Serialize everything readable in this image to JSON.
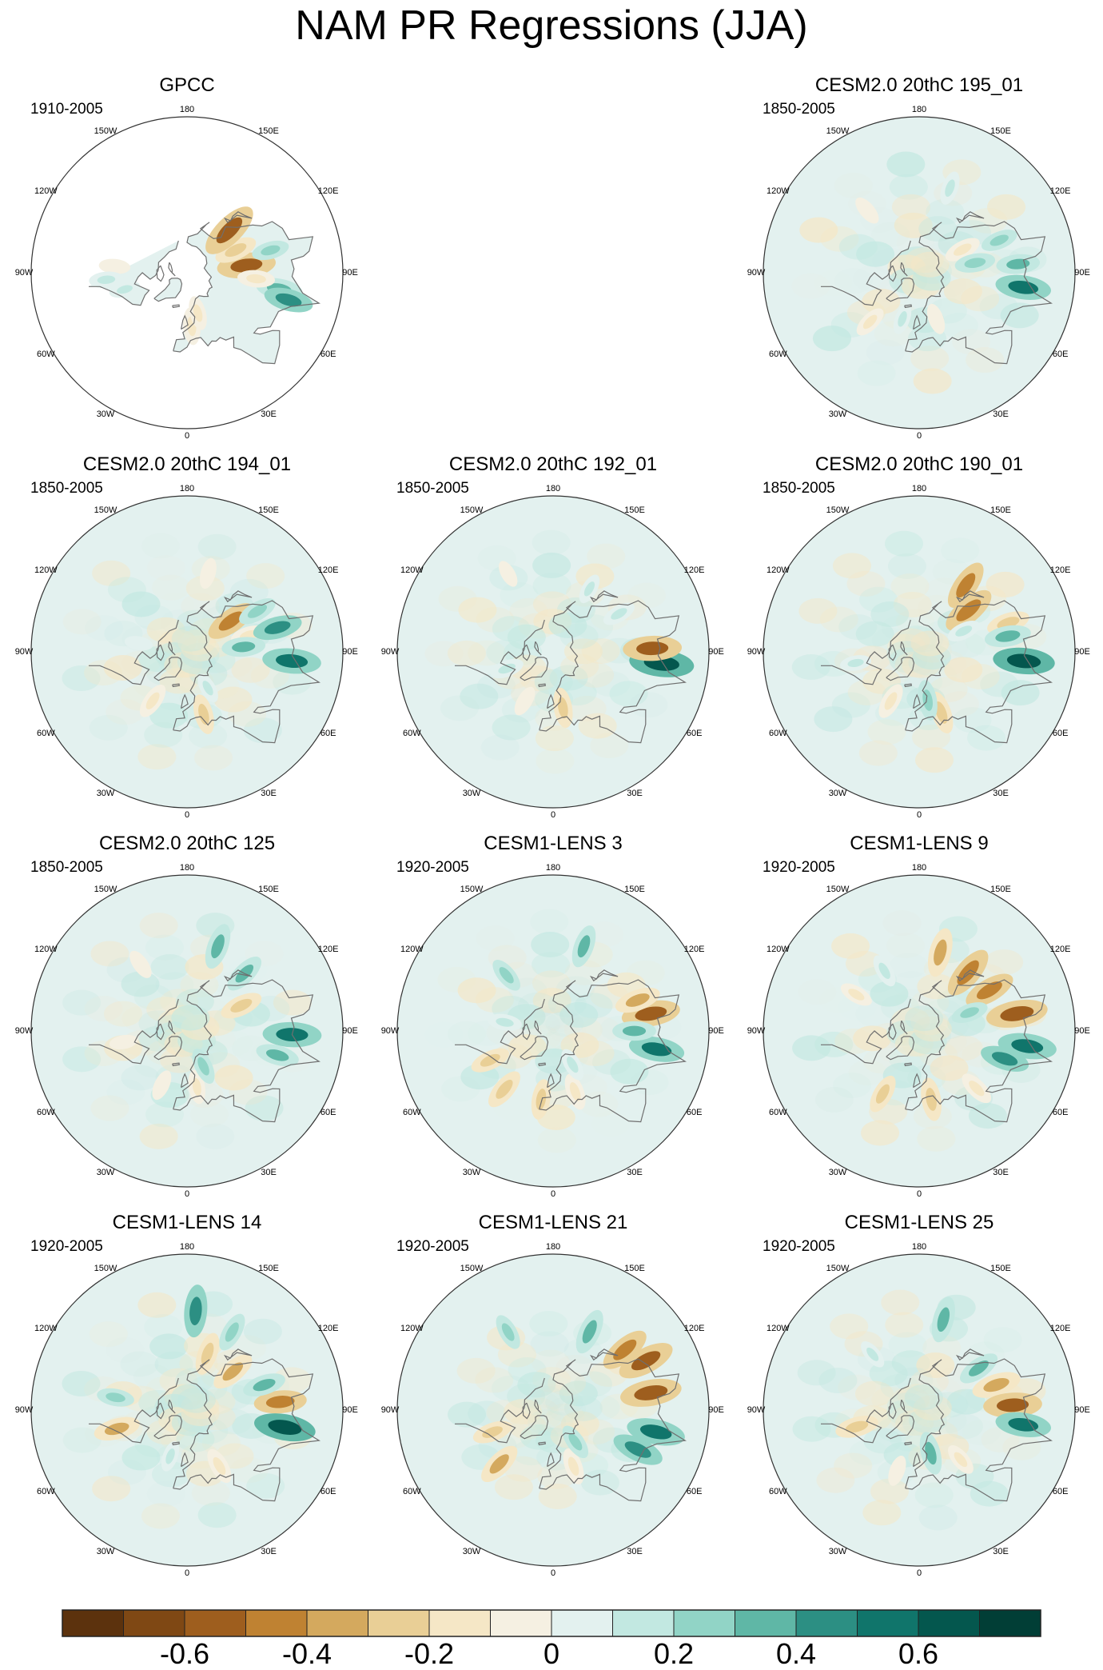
{
  "chart_data": {
    "type": "heatmap",
    "projection": "north-polar-stereographic",
    "title": "NAM PR Regressions (JJA)",
    "colorbar": {
      "levels": [
        -0.7,
        -0.6,
        -0.5,
        -0.4,
        -0.3,
        -0.2,
        -0.1,
        0,
        0.1,
        0.2,
        0.3,
        0.4,
        0.5,
        0.6,
        0.7
      ],
      "labels": [
        "-0.6",
        "-0.4",
        "-0.2",
        "0",
        "0.2",
        "0.4",
        "0.6"
      ],
      "label_values": [
        -0.6,
        -0.4,
        -0.2,
        0,
        0.2,
        0.4,
        0.6
      ],
      "colors": [
        "#5c320d",
        "#7f4814",
        "#9e5e1e",
        "#bf8232",
        "#d4a95e",
        "#e9cf96",
        "#f5e7c6",
        "#f5f0e2",
        "#e3f1ef",
        "#c2e8e1",
        "#91d4c6",
        "#5fb7a6",
        "#2c8f83",
        "#10756b",
        "#04574e",
        "#013e36"
      ]
    },
    "longitude_labels": [
      "180",
      "150E",
      "120E",
      "90E",
      "60E",
      "30E",
      "0",
      "30W",
      "60W",
      "90W",
      "120W",
      "150W"
    ],
    "panels": [
      {
        "id": "gpcc",
        "title": "GPCC",
        "period": "1910-2005",
        "observational_mask": true,
        "features": [
          {
            "lon": 97,
            "lat": 48,
            "value": -0.55
          },
          {
            "lon": 115,
            "lat": 52,
            "value": -0.3
          },
          {
            "lon": 135,
            "lat": 48,
            "value": -0.6
          },
          {
            "lon": 80,
            "lat": 28,
            "value": 0.35
          },
          {
            "lon": 75,
            "lat": 22,
            "value": 0.4
          },
          {
            "lon": 105,
            "lat": 32,
            "value": 0.2
          },
          {
            "lon": 5,
            "lat": 52,
            "value": -0.2
          },
          {
            "lon": 15,
            "lat": 60,
            "value": -0.15
          },
          {
            "lon": -95,
            "lat": 40,
            "value": -0.1
          },
          {
            "lon": -85,
            "lat": 35,
            "value": 0.15
          },
          {
            "lon": -75,
            "lat": 45,
            "value": 0.1
          },
          {
            "lon": 85,
            "lat": 42,
            "value": -0.2
          }
        ]
      },
      {
        "id": "cesm2-195",
        "title": "CESM2.0 20thC 195_01",
        "period": "1850-2005",
        "features": [
          {
            "lon": 82,
            "lat": 22,
            "value": 0.5
          },
          {
            "lon": 95,
            "lat": 25,
            "value": 0.3
          },
          {
            "lon": 112,
            "lat": 32,
            "value": 0.2
          },
          {
            "lon": 118,
            "lat": 55,
            "value": -0.2
          },
          {
            "lon": 100,
            "lat": 50,
            "value": 0.25
          },
          {
            "lon": 160,
            "lat": 30,
            "value": 0.15
          },
          {
            "lon": -140,
            "lat": 35,
            "value": -0.1
          },
          {
            "lon": -45,
            "lat": 42,
            "value": -0.15
          },
          {
            "lon": -20,
            "lat": 55,
            "value": 0.1
          },
          {
            "lon": 20,
            "lat": 55,
            "value": -0.1
          }
        ]
      },
      {
        "id": "cesm2-194",
        "title": "CESM2.0 20thC 194_01",
        "period": "1850-2005",
        "features": [
          {
            "lon": 125,
            "lat": 52,
            "value": -0.45
          },
          {
            "lon": 105,
            "lat": 45,
            "value": -0.2
          },
          {
            "lon": 85,
            "lat": 22,
            "value": 0.55
          },
          {
            "lon": 105,
            "lat": 28,
            "value": 0.4
          },
          {
            "lon": 120,
            "lat": 35,
            "value": 0.25
          },
          {
            "lon": 95,
            "lat": 50,
            "value": 0.3
          },
          {
            "lon": 15,
            "lat": 45,
            "value": -0.25
          },
          {
            "lon": -35,
            "lat": 48,
            "value": -0.2
          },
          {
            "lon": 30,
            "lat": 60,
            "value": 0.1
          },
          {
            "lon": -100,
            "lat": 55,
            "value": 0.05
          },
          {
            "lon": 165,
            "lat": 35,
            "value": -0.1
          }
        ]
      },
      {
        "id": "cesm2-192",
        "title": "CESM2.0 20thC 192_01",
        "period": "1850-2005",
        "features": [
          {
            "lon": 84,
            "lat": 20,
            "value": 0.65
          },
          {
            "lon": 92,
            "lat": 25,
            "value": -0.55
          },
          {
            "lon": 120,
            "lat": 38,
            "value": 0.15
          },
          {
            "lon": 10,
            "lat": 50,
            "value": -0.25
          },
          {
            "lon": -30,
            "lat": 50,
            "value": -0.1
          },
          {
            "lon": -70,
            "lat": 55,
            "value": 0.15
          },
          {
            "lon": 150,
            "lat": 40,
            "value": 0.1
          },
          {
            "lon": -150,
            "lat": 30,
            "value": -0.05
          }
        ]
      },
      {
        "id": "cesm2-190",
        "title": "CESM2.0 20thC 190_01",
        "period": "1850-2005",
        "features": [
          {
            "lon": 145,
            "lat": 35,
            "value": -0.45
          },
          {
            "lon": 130,
            "lat": 45,
            "value": -0.5
          },
          {
            "lon": 108,
            "lat": 28,
            "value": -0.3
          },
          {
            "lon": 85,
            "lat": 22,
            "value": 0.6
          },
          {
            "lon": 100,
            "lat": 30,
            "value": 0.35
          },
          {
            "lon": 20,
            "lat": 45,
            "value": -0.3
          },
          {
            "lon": 10,
            "lat": 55,
            "value": 0.25
          },
          {
            "lon": -30,
            "lat": 50,
            "value": -0.2
          },
          {
            "lon": -80,
            "lat": 45,
            "value": 0.1
          },
          {
            "lon": 115,
            "lat": 55,
            "value": 0.15
          }
        ]
      },
      {
        "id": "cesm2-125",
        "title": "CESM2.0 20thC 125",
        "period": "1850-2005",
        "features": [
          {
            "lon": 160,
            "lat": 30,
            "value": 0.35
          },
          {
            "lon": 135,
            "lat": 35,
            "value": 0.3
          },
          {
            "lon": 115,
            "lat": 48,
            "value": -0.3
          },
          {
            "lon": 88,
            "lat": 22,
            "value": 0.55
          },
          {
            "lon": 75,
            "lat": 28,
            "value": 0.3
          },
          {
            "lon": 10,
            "lat": 50,
            "value": -0.15
          },
          {
            "lon": -25,
            "lat": 48,
            "value": -0.1
          },
          {
            "lon": 25,
            "lat": 62,
            "value": 0.2
          },
          {
            "lon": -80,
            "lat": 45,
            "value": -0.05
          },
          {
            "lon": -145,
            "lat": 35,
            "value": -0.1
          }
        ]
      },
      {
        "id": "cesm1-3",
        "title": "CESM1-LENS 3",
        "period": "1920-2005",
        "features": [
          {
            "lon": 100,
            "lat": 25,
            "value": -0.55
          },
          {
            "lon": 110,
            "lat": 30,
            "value": -0.35
          },
          {
            "lon": 80,
            "lat": 22,
            "value": 0.5
          },
          {
            "lon": 90,
            "lat": 35,
            "value": 0.3
          },
          {
            "lon": 160,
            "lat": 30,
            "value": 0.3
          },
          {
            "lon": -140,
            "lat": 40,
            "value": 0.2
          },
          {
            "lon": -40,
            "lat": 38,
            "value": -0.3
          },
          {
            "lon": -10,
            "lat": 42,
            "value": -0.25
          },
          {
            "lon": 20,
            "lat": 45,
            "value": -0.2
          },
          {
            "lon": -65,
            "lat": 42,
            "value": -0.25
          },
          {
            "lon": 30,
            "lat": 62,
            "value": 0.15
          },
          {
            "lon": -100,
            "lat": 55,
            "value": 0.15
          }
        ]
      },
      {
        "id": "cesm1-9",
        "title": "CESM1-LENS 9",
        "period": "1920-2005",
        "features": [
          {
            "lon": 165,
            "lat": 35,
            "value": -0.4
          },
          {
            "lon": 140,
            "lat": 38,
            "value": -0.5
          },
          {
            "lon": 120,
            "lat": 35,
            "value": -0.45
          },
          {
            "lon": 100,
            "lat": 25,
            "value": -0.6
          },
          {
            "lon": 82,
            "lat": 20,
            "value": 0.55
          },
          {
            "lon": 72,
            "lat": 30,
            "value": 0.4
          },
          {
            "lon": 110,
            "lat": 52,
            "value": 0.2
          },
          {
            "lon": -30,
            "lat": 40,
            "value": -0.25
          },
          {
            "lon": 10,
            "lat": 42,
            "value": -0.3
          },
          {
            "lon": 45,
            "lat": 35,
            "value": -0.2
          },
          {
            "lon": -150,
            "lat": 42,
            "value": 0.15
          },
          {
            "lon": -120,
            "lat": 40,
            "value": -0.15
          }
        ]
      },
      {
        "id": "cesm1-14",
        "title": "CESM1-LENS 14",
        "period": "1920-2005",
        "features": [
          {
            "lon": 175,
            "lat": 25,
            "value": 0.45
          },
          {
            "lon": 150,
            "lat": 30,
            "value": 0.25
          },
          {
            "lon": 130,
            "lat": 48,
            "value": -0.35
          },
          {
            "lon": 160,
            "lat": 48,
            "value": -0.3
          },
          {
            "lon": 95,
            "lat": 28,
            "value": -0.45
          },
          {
            "lon": 80,
            "lat": 25,
            "value": 0.6
          },
          {
            "lon": 108,
            "lat": 35,
            "value": 0.3
          },
          {
            "lon": -100,
            "lat": 40,
            "value": 0.2
          },
          {
            "lon": -75,
            "lat": 40,
            "value": -0.35
          },
          {
            "lon": 30,
            "lat": 45,
            "value": -0.2
          },
          {
            "lon": -20,
            "lat": 55,
            "value": 0.1
          }
        ]
      },
      {
        "id": "cesm1-21",
        "title": "CESM1-LENS 21",
        "period": "1920-2005",
        "features": [
          {
            "lon": 118,
            "lat": 22,
            "value": -0.55
          },
          {
            "lon": 130,
            "lat": 28,
            "value": -0.45
          },
          {
            "lon": 100,
            "lat": 25,
            "value": -0.6
          },
          {
            "lon": 78,
            "lat": 22,
            "value": 0.55
          },
          {
            "lon": 65,
            "lat": 28,
            "value": 0.45
          },
          {
            "lon": 155,
            "lat": 32,
            "value": 0.35
          },
          {
            "lon": -150,
            "lat": 30,
            "value": 0.2
          },
          {
            "lon": -45,
            "lat": 38,
            "value": -0.35
          },
          {
            "lon": -70,
            "lat": 45,
            "value": -0.25
          },
          {
            "lon": 20,
            "lat": 48,
            "value": -0.2
          },
          {
            "lon": 35,
            "lat": 62,
            "value": 0.2
          }
        ]
      },
      {
        "id": "cesm1-25",
        "title": "CESM1-LENS 25",
        "period": "1920-2005",
        "features": [
          {
            "lon": 165,
            "lat": 28,
            "value": 0.35
          },
          {
            "lon": 125,
            "lat": 40,
            "value": 0.3
          },
          {
            "lon": 108,
            "lat": 35,
            "value": -0.4
          },
          {
            "lon": 93,
            "lat": 28,
            "value": -0.55
          },
          {
            "lon": 82,
            "lat": 22,
            "value": 0.5
          },
          {
            "lon": -75,
            "lat": 45,
            "value": -0.3
          },
          {
            "lon": 15,
            "lat": 58,
            "value": 0.3
          },
          {
            "lon": -20,
            "lat": 45,
            "value": -0.1
          },
          {
            "lon": 40,
            "lat": 45,
            "value": -0.15
          },
          {
            "lon": -140,
            "lat": 40,
            "value": 0.1
          }
        ]
      }
    ]
  },
  "colors": {
    "outline": "#333333",
    "coast": "#6f6f6f",
    "mask": "#ffffff"
  }
}
